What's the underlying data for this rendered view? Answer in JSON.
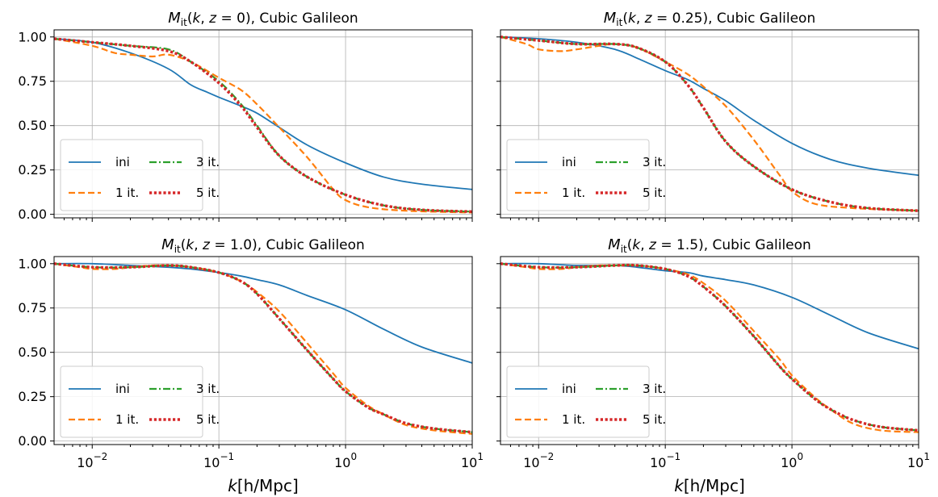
{
  "chart_data": [
    {
      "type": "line",
      "title_parts": [
        "M",
        "it",
        "(",
        "k",
        ", ",
        "z",
        " = 0), Cubic Galileon"
      ],
      "xlabel": "",
      "ylabel": "",
      "xscale": "log",
      "xlim": [
        0.005,
        10
      ],
      "ylim": [
        -0.02,
        1.04
      ],
      "grid": true,
      "legend": "lower-left",
      "series": [
        {
          "name": "ini",
          "color": "#1f77b4",
          "style": "solid",
          "x": [
            0.005,
            0.01,
            0.02,
            0.04,
            0.06,
            0.08,
            0.1,
            0.15,
            0.2,
            0.3,
            0.5,
            1,
            2,
            4,
            10
          ],
          "y": [
            0.99,
            0.97,
            0.91,
            0.82,
            0.73,
            0.69,
            0.66,
            0.61,
            0.57,
            0.49,
            0.39,
            0.29,
            0.21,
            0.17,
            0.14
          ]
        },
        {
          "name": "1 it.",
          "color": "#ff7f0e",
          "style": "dashed",
          "x": [
            0.005,
            0.01,
            0.015,
            0.02,
            0.03,
            0.04,
            0.06,
            0.1,
            0.15,
            0.2,
            0.3,
            0.5,
            0.8,
            1,
            1.5,
            3,
            10
          ],
          "y": [
            0.99,
            0.95,
            0.91,
            0.9,
            0.89,
            0.9,
            0.86,
            0.77,
            0.7,
            0.62,
            0.49,
            0.32,
            0.14,
            0.08,
            0.04,
            0.02,
            0.01
          ]
        },
        {
          "name": "3 it.",
          "color": "#2ca02c",
          "style": "dashdot",
          "x": [
            0.005,
            0.01,
            0.02,
            0.04,
            0.06,
            0.1,
            0.15,
            0.2,
            0.3,
            0.5,
            1,
            2,
            4,
            10
          ],
          "y": [
            0.99,
            0.97,
            0.95,
            0.93,
            0.86,
            0.75,
            0.62,
            0.5,
            0.33,
            0.21,
            0.11,
            0.05,
            0.025,
            0.015
          ]
        },
        {
          "name": "5 it.",
          "color": "#d62728",
          "style": "dotted",
          "x": [
            0.005,
            0.01,
            0.02,
            0.04,
            0.06,
            0.1,
            0.15,
            0.2,
            0.3,
            0.5,
            1,
            2,
            4,
            10
          ],
          "y": [
            0.99,
            0.97,
            0.95,
            0.92,
            0.86,
            0.74,
            0.61,
            0.49,
            0.33,
            0.21,
            0.11,
            0.05,
            0.025,
            0.015
          ]
        }
      ]
    },
    {
      "type": "line",
      "title_parts": [
        "M",
        "it",
        "(",
        "k",
        ", ",
        "z",
        " = 0.25), Cubic Galileon"
      ],
      "xlabel": "",
      "ylabel": "",
      "xscale": "log",
      "xlim": [
        0.005,
        10
      ],
      "ylim": [
        -0.02,
        1.04
      ],
      "grid": true,
      "legend": "lower-left",
      "series": [
        {
          "name": "ini",
          "color": "#1f77b4",
          "style": "solid",
          "x": [
            0.005,
            0.01,
            0.02,
            0.04,
            0.06,
            0.1,
            0.15,
            0.2,
            0.3,
            0.5,
            1,
            2,
            4,
            10
          ],
          "y": [
            1.0,
            0.99,
            0.97,
            0.93,
            0.88,
            0.81,
            0.76,
            0.71,
            0.64,
            0.53,
            0.4,
            0.31,
            0.26,
            0.22
          ]
        },
        {
          "name": "1 it.",
          "color": "#ff7f0e",
          "style": "dashed",
          "x": [
            0.005,
            0.008,
            0.01,
            0.015,
            0.02,
            0.03,
            0.04,
            0.06,
            0.1,
            0.15,
            0.2,
            0.3,
            0.5,
            0.8,
            1,
            1.5,
            3,
            10
          ],
          "y": [
            1.0,
            0.96,
            0.93,
            0.92,
            0.93,
            0.95,
            0.96,
            0.94,
            0.86,
            0.79,
            0.72,
            0.61,
            0.42,
            0.22,
            0.13,
            0.06,
            0.035,
            0.02
          ]
        },
        {
          "name": "3 it.",
          "color": "#2ca02c",
          "style": "dashdot",
          "x": [
            0.005,
            0.01,
            0.02,
            0.04,
            0.06,
            0.1,
            0.15,
            0.2,
            0.3,
            0.5,
            1,
            2,
            4,
            10
          ],
          "y": [
            1.0,
            0.98,
            0.96,
            0.96,
            0.94,
            0.86,
            0.73,
            0.6,
            0.41,
            0.27,
            0.14,
            0.07,
            0.035,
            0.02
          ]
        },
        {
          "name": "5 it.",
          "color": "#d62728",
          "style": "dotted",
          "x": [
            0.005,
            0.01,
            0.02,
            0.04,
            0.06,
            0.1,
            0.15,
            0.2,
            0.3,
            0.5,
            1,
            2,
            4,
            10
          ],
          "y": [
            1.0,
            0.98,
            0.96,
            0.96,
            0.94,
            0.86,
            0.73,
            0.6,
            0.41,
            0.27,
            0.14,
            0.07,
            0.035,
            0.02
          ]
        }
      ]
    },
    {
      "type": "line",
      "title_parts": [
        "M",
        "it",
        "(",
        "k",
        ", ",
        "z",
        " = 1.0), Cubic Galileon"
      ],
      "xlabel": "k[h/Mpc]",
      "xlabel_parts": [
        "k",
        "[h/Mpc]"
      ],
      "ylabel": "",
      "xscale": "log",
      "xlim": [
        0.005,
        10
      ],
      "ylim": [
        -0.02,
        1.04
      ],
      "grid": true,
      "legend": "lower-left",
      "series": [
        {
          "name": "ini",
          "color": "#1f77b4",
          "style": "solid",
          "x": [
            0.005,
            0.01,
            0.02,
            0.04,
            0.06,
            0.1,
            0.15,
            0.2,
            0.3,
            0.5,
            1,
            2,
            4,
            10
          ],
          "y": [
            1.0,
            1.0,
            0.99,
            0.98,
            0.97,
            0.95,
            0.93,
            0.91,
            0.88,
            0.82,
            0.74,
            0.63,
            0.53,
            0.44
          ]
        },
        {
          "name": "1 it.",
          "color": "#ff7f0e",
          "style": "dashed",
          "x": [
            0.005,
            0.008,
            0.01,
            0.015,
            0.02,
            0.03,
            0.04,
            0.06,
            0.1,
            0.15,
            0.2,
            0.3,
            0.5,
            0.8,
            1,
            1.5,
            2,
            3,
            5,
            10
          ],
          "y": [
            1.0,
            0.98,
            0.97,
            0.97,
            0.98,
            0.99,
            0.99,
            0.98,
            0.95,
            0.9,
            0.84,
            0.73,
            0.55,
            0.38,
            0.3,
            0.2,
            0.15,
            0.09,
            0.06,
            0.04
          ]
        },
        {
          "name": "3 it.",
          "color": "#2ca02c",
          "style": "dashdot",
          "x": [
            0.005,
            0.01,
            0.02,
            0.04,
            0.06,
            0.1,
            0.15,
            0.2,
            0.3,
            0.5,
            0.8,
            1,
            1.5,
            2,
            3,
            5,
            10
          ],
          "y": [
            1.0,
            0.98,
            0.98,
            0.99,
            0.98,
            0.95,
            0.9,
            0.83,
            0.69,
            0.51,
            0.35,
            0.28,
            0.19,
            0.15,
            0.1,
            0.07,
            0.05
          ]
        },
        {
          "name": "5 it.",
          "color": "#d62728",
          "style": "dotted",
          "x": [
            0.005,
            0.01,
            0.02,
            0.04,
            0.06,
            0.1,
            0.15,
            0.2,
            0.3,
            0.5,
            0.8,
            1,
            1.5,
            2,
            3,
            5,
            10
          ],
          "y": [
            1.0,
            0.98,
            0.98,
            0.99,
            0.98,
            0.95,
            0.9,
            0.83,
            0.69,
            0.51,
            0.35,
            0.28,
            0.19,
            0.15,
            0.1,
            0.07,
            0.05
          ]
        }
      ]
    },
    {
      "type": "line",
      "title_parts": [
        "M",
        "it",
        "(",
        "k",
        ", ",
        "z",
        " = 1.5), Cubic Galileon"
      ],
      "xlabel": "k[h/Mpc]",
      "xlabel_parts": [
        "k",
        "[h/Mpc]"
      ],
      "ylabel": "",
      "xscale": "log",
      "xlim": [
        0.005,
        10
      ],
      "ylim": [
        -0.02,
        1.04
      ],
      "grid": true,
      "legend": "lower-left",
      "series": [
        {
          "name": "ini",
          "color": "#1f77b4",
          "style": "solid",
          "x": [
            0.005,
            0.01,
            0.02,
            0.04,
            0.06,
            0.1,
            0.15,
            0.2,
            0.3,
            0.5,
            1,
            2,
            4,
            10
          ],
          "y": [
            1.0,
            1.0,
            0.99,
            0.99,
            0.98,
            0.96,
            0.95,
            0.93,
            0.91,
            0.88,
            0.81,
            0.71,
            0.61,
            0.52
          ]
        },
        {
          "name": "1 it.",
          "color": "#ff7f0e",
          "style": "dashed",
          "x": [
            0.005,
            0.008,
            0.01,
            0.015,
            0.02,
            0.03,
            0.04,
            0.06,
            0.1,
            0.15,
            0.2,
            0.3,
            0.5,
            0.8,
            1,
            1.5,
            2,
            3,
            5,
            10
          ],
          "y": [
            1.0,
            0.98,
            0.97,
            0.97,
            0.98,
            0.99,
            0.99,
            0.99,
            0.97,
            0.94,
            0.89,
            0.79,
            0.62,
            0.46,
            0.37,
            0.25,
            0.18,
            0.1,
            0.06,
            0.05
          ]
        },
        {
          "name": "3 it.",
          "color": "#2ca02c",
          "style": "dashdot",
          "x": [
            0.005,
            0.01,
            0.02,
            0.04,
            0.06,
            0.1,
            0.15,
            0.2,
            0.3,
            0.5,
            0.8,
            1,
            1.5,
            2,
            3,
            5,
            10
          ],
          "y": [
            1.0,
            0.98,
            0.98,
            0.99,
            0.99,
            0.97,
            0.93,
            0.87,
            0.76,
            0.59,
            0.42,
            0.35,
            0.24,
            0.18,
            0.12,
            0.08,
            0.06
          ]
        },
        {
          "name": "5 it.",
          "color": "#d62728",
          "style": "dotted",
          "x": [
            0.005,
            0.01,
            0.02,
            0.04,
            0.06,
            0.1,
            0.15,
            0.2,
            0.3,
            0.5,
            0.8,
            1,
            1.5,
            2,
            3,
            5,
            10
          ],
          "y": [
            1.0,
            0.98,
            0.98,
            0.99,
            0.99,
            0.97,
            0.93,
            0.87,
            0.76,
            0.59,
            0.42,
            0.35,
            0.24,
            0.18,
            0.12,
            0.08,
            0.06
          ]
        }
      ]
    }
  ],
  "axes": {
    "y_ticks": [
      "0.00",
      "0.25",
      "0.50",
      "0.75",
      "1.00"
    ],
    "y_tick_values": [
      0,
      0.25,
      0.5,
      0.75,
      1.0
    ],
    "x_ticks": [
      {
        "value": 0.01,
        "base": "10",
        "exp": "−2"
      },
      {
        "value": 0.1,
        "base": "10",
        "exp": "−1"
      },
      {
        "value": 1,
        "base": "10",
        "exp": "0"
      },
      {
        "value": 10,
        "base": "10",
        "exp": "1"
      }
    ]
  }
}
